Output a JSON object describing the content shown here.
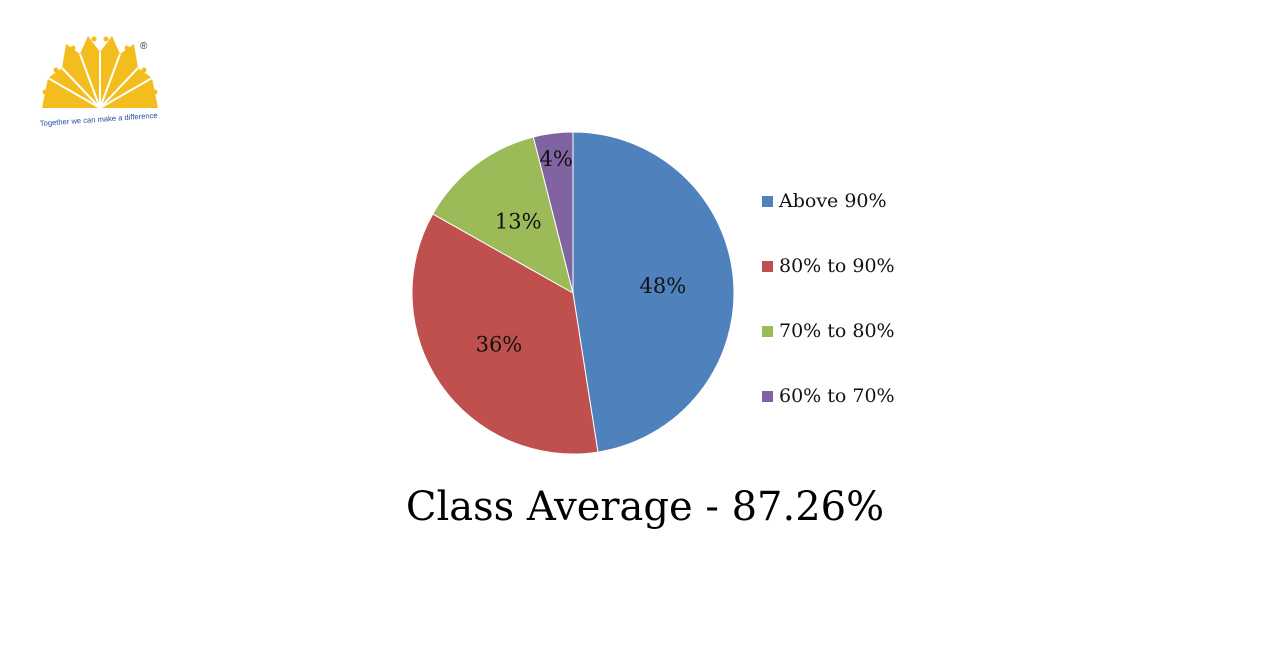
{
  "logo": {
    "tagline": "Together we can make a difference",
    "registered_mark": "®",
    "colors": {
      "sun": "#F2BD1D",
      "tagline": "#1F4E9C"
    }
  },
  "chart_data": {
    "type": "pie",
    "title": "",
    "slices": [
      {
        "name": "Above 90%",
        "value": 48,
        "label": "48%",
        "color": "#4F81BD"
      },
      {
        "name": "80% to 90%",
        "value": 36,
        "label": "36%",
        "color": "#C0504D"
      },
      {
        "name": "70% to 80%",
        "value": 13,
        "label": "13%",
        "color": "#9BBB59"
      },
      {
        "name": "60% to 70%",
        "value": 4,
        "label": "4%",
        "color": "#8064A2"
      }
    ],
    "legend_position": "right"
  },
  "caption": "Class Average - 87.26%"
}
